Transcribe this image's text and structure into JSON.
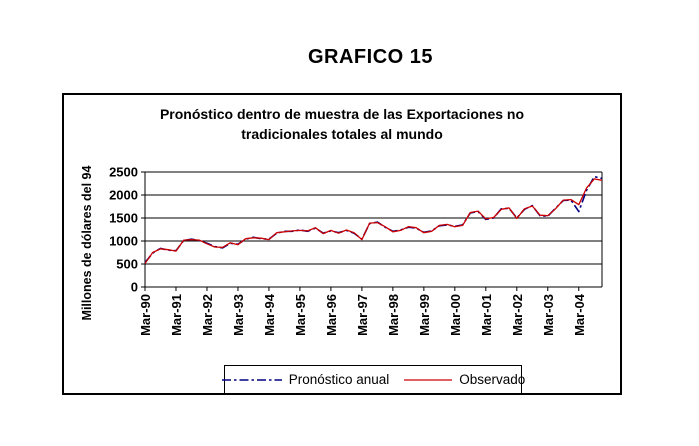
{
  "page": {
    "title": "GRAFICO 15"
  },
  "chart": {
    "title_line1": "Pronóstico dentro de muestra de las Exportaciones no",
    "title_line2": "tradicionales totales al mundo",
    "ylabel": "Millones de dólares del 94"
  },
  "legend": {
    "items": [
      {
        "label": "Pronóstico anual"
      },
      {
        "label": "Observado"
      }
    ]
  },
  "chart_data": {
    "type": "line",
    "title": "Pronóstico dentro de muestra de las Exportaciones no tradicionales totales al mundo",
    "ylabel": "Millones de dólares del 94",
    "xlabel": "",
    "ylim": [
      0,
      2500
    ],
    "y_ticks": [
      0,
      500,
      1000,
      1500,
      2000,
      2500
    ],
    "x_tick_labels": [
      "Mar-90",
      "Mar-91",
      "Mar-92",
      "Mar-93",
      "Mar-94",
      "Mar-95",
      "Mar-96",
      "Mar-97",
      "Mar-98",
      "Mar-99",
      "Mar-00",
      "Mar-01",
      "Mar-02",
      "Mar-03",
      "Mar-04"
    ],
    "points_per_tick": 4,
    "x_frequency": "quarterly",
    "x_start": "Mar-90",
    "x_end": "Dec-04",
    "grid": "horizontal",
    "legend_position": "bottom",
    "series": [
      {
        "name": "Pronóstico anual",
        "color": "#000080",
        "style": "dashdot",
        "dash": "9 3 2.5 3",
        "width": 1.6,
        "values": [
          530,
          740,
          840,
          800,
          790,
          1010,
          1040,
          1010,
          950,
          880,
          850,
          950,
          930,
          1040,
          1080,
          1050,
          1040,
          1170,
          1210,
          1210,
          1240,
          1210,
          1280,
          1170,
          1220,
          1180,
          1230,
          1170,
          1040,
          1380,
          1410,
          1300,
          1210,
          1240,
          1300,
          1280,
          1190,
          1220,
          1330,
          1350,
          1320,
          1350,
          1610,
          1640,
          1470,
          1500,
          1700,
          1710,
          1500,
          1690,
          1770,
          1550,
          1540,
          1710,
          1880,
          1890,
          1640,
          2100,
          2400,
          2360
        ]
      },
      {
        "name": "Observado",
        "color": "#cc0000",
        "style": "solid",
        "dash": "",
        "width": 1.3,
        "values": [
          510,
          750,
          830,
          810,
          780,
          1020,
          1030,
          1020,
          940,
          870,
          860,
          960,
          920,
          1050,
          1070,
          1060,
          1030,
          1180,
          1200,
          1220,
          1230,
          1220,
          1290,
          1160,
          1230,
          1170,
          1240,
          1180,
          1030,
          1390,
          1400,
          1310,
          1200,
          1230,
          1310,
          1290,
          1180,
          1210,
          1340,
          1360,
          1310,
          1340,
          1620,
          1650,
          1480,
          1510,
          1690,
          1720,
          1490,
          1700,
          1760,
          1560,
          1550,
          1700,
          1890,
          1900,
          1790,
          2150,
          2350,
          2320
        ]
      }
    ]
  }
}
